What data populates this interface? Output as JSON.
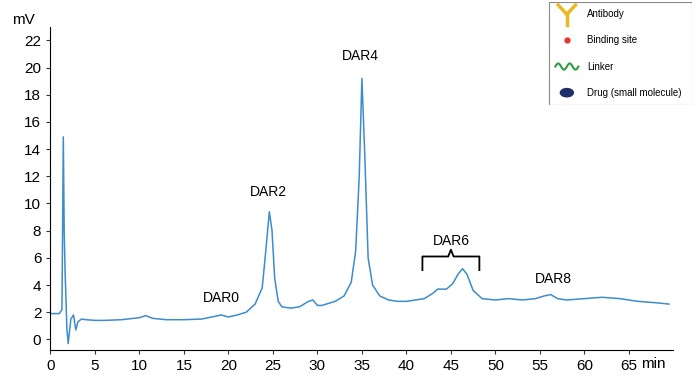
{
  "chart_data": {
    "type": "line",
    "x_label": "min",
    "y_label": "mV",
    "x": [
      0,
      0.5,
      1.0,
      1.3,
      1.45,
      1.55,
      1.65,
      1.75,
      1.85,
      2.0,
      2.3,
      2.6,
      2.85,
      3.1,
      3.5,
      4,
      5,
      6,
      8,
      10,
      10.7,
      11.5,
      13,
      15,
      17,
      18.5,
      19.2,
      20,
      21,
      22,
      23,
      23.8,
      24.2,
      24.6,
      24.9,
      25.2,
      25.6,
      26,
      27,
      28,
      29,
      29.5,
      30,
      30.5,
      31,
      32,
      33,
      33.8,
      34.3,
      34.7,
      35.0,
      35.3,
      35.7,
      36.2,
      37,
      38,
      39,
      40,
      41,
      42,
      43,
      43.5,
      44.5,
      45.2,
      45.8,
      46.3,
      46.8,
      47.5,
      48.5,
      50,
      51.5,
      53,
      54.5,
      55.5,
      56.2,
      57,
      58,
      60,
      62,
      64,
      66,
      68,
      69.5
    ],
    "values": [
      1.9,
      1.9,
      1.9,
      2.2,
      14.9,
      8.0,
      5.0,
      3.0,
      0.8,
      -0.3,
      1.5,
      1.8,
      0.7,
      1.3,
      1.5,
      1.45,
      1.4,
      1.4,
      1.45,
      1.6,
      1.75,
      1.55,
      1.45,
      1.45,
      1.5,
      1.7,
      1.8,
      1.65,
      1.8,
      2.0,
      2.6,
      3.8,
      6.5,
      9.4,
      8.0,
      4.5,
      2.8,
      2.4,
      2.3,
      2.4,
      2.8,
      2.9,
      2.5,
      2.5,
      2.6,
      2.8,
      3.2,
      4.2,
      6.5,
      12,
      19.2,
      14,
      6.0,
      4.0,
      3.2,
      2.9,
      2.8,
      2.8,
      2.9,
      3.0,
      3.4,
      3.7,
      3.7,
      4.1,
      4.8,
      5.2,
      4.8,
      3.6,
      3.0,
      2.9,
      3.0,
      2.9,
      3.0,
      3.2,
      3.3,
      3.0,
      2.9,
      3.0,
      3.1,
      3.0,
      2.8,
      2.7,
      2.6
    ],
    "color": "#3d8ccb",
    "xlim": [
      0,
      70
    ],
    "xticks": [
      0,
      5,
      10,
      15,
      20,
      25,
      30,
      35,
      40,
      45,
      50,
      55,
      60,
      65
    ],
    "ylim": [
      -0.8,
      23
    ],
    "yticks": [
      0,
      2,
      4,
      6,
      8,
      10,
      12,
      14,
      16,
      18,
      20,
      22
    ],
    "grid": false,
    "annotations": [
      {
        "text": "DAR0",
        "x": 19.2,
        "y": 2.5
      },
      {
        "text": "DAR2",
        "x": 24.5,
        "y": 10.3
      },
      {
        "text": "DAR4",
        "x": 34.8,
        "y": 20.3
      },
      {
        "text": "DAR6",
        "x": 45,
        "y": 6.7
      },
      {
        "text": "DAR8",
        "x": 56.5,
        "y": 3.9
      }
    ],
    "legend_items": [
      "Antibody",
      "Binding site",
      "Linker",
      "Drug (small molecule)"
    ]
  }
}
